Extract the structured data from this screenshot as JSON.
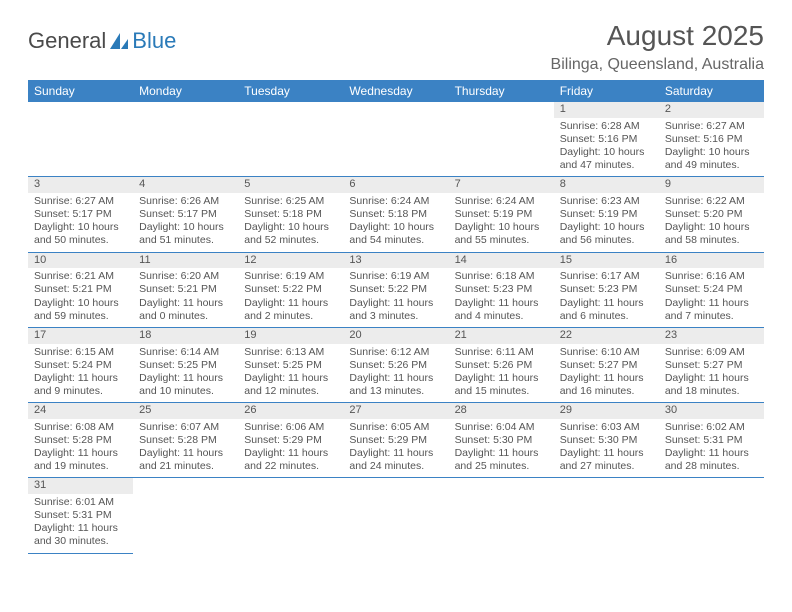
{
  "logo": {
    "part1": "General",
    "part2": "Blue"
  },
  "title": "August 2025",
  "location": "Bilinga, Queensland, Australia",
  "theme": {
    "header_bg": "#3b82c4",
    "header_fg": "#ffffff",
    "daynum_bg": "#ececec",
    "border_color": "#3b82c4",
    "text_color": "#555555",
    "logo_blue": "#2a7ab8"
  },
  "columns": [
    "Sunday",
    "Monday",
    "Tuesday",
    "Wednesday",
    "Thursday",
    "Friday",
    "Saturday"
  ],
  "weeks": [
    [
      null,
      null,
      null,
      null,
      null,
      {
        "n": "1",
        "sunrise": "6:28 AM",
        "sunset": "5:16 PM",
        "daylight": "10 hours and 47 minutes."
      },
      {
        "n": "2",
        "sunrise": "6:27 AM",
        "sunset": "5:16 PM",
        "daylight": "10 hours and 49 minutes."
      }
    ],
    [
      {
        "n": "3",
        "sunrise": "6:27 AM",
        "sunset": "5:17 PM",
        "daylight": "10 hours and 50 minutes."
      },
      {
        "n": "4",
        "sunrise": "6:26 AM",
        "sunset": "5:17 PM",
        "daylight": "10 hours and 51 minutes."
      },
      {
        "n": "5",
        "sunrise": "6:25 AM",
        "sunset": "5:18 PM",
        "daylight": "10 hours and 52 minutes."
      },
      {
        "n": "6",
        "sunrise": "6:24 AM",
        "sunset": "5:18 PM",
        "daylight": "10 hours and 54 minutes."
      },
      {
        "n": "7",
        "sunrise": "6:24 AM",
        "sunset": "5:19 PM",
        "daylight": "10 hours and 55 minutes."
      },
      {
        "n": "8",
        "sunrise": "6:23 AM",
        "sunset": "5:19 PM",
        "daylight": "10 hours and 56 minutes."
      },
      {
        "n": "9",
        "sunrise": "6:22 AM",
        "sunset": "5:20 PM",
        "daylight": "10 hours and 58 minutes."
      }
    ],
    [
      {
        "n": "10",
        "sunrise": "6:21 AM",
        "sunset": "5:21 PM",
        "daylight": "10 hours and 59 minutes."
      },
      {
        "n": "11",
        "sunrise": "6:20 AM",
        "sunset": "5:21 PM",
        "daylight": "11 hours and 0 minutes."
      },
      {
        "n": "12",
        "sunrise": "6:19 AM",
        "sunset": "5:22 PM",
        "daylight": "11 hours and 2 minutes."
      },
      {
        "n": "13",
        "sunrise": "6:19 AM",
        "sunset": "5:22 PM",
        "daylight": "11 hours and 3 minutes."
      },
      {
        "n": "14",
        "sunrise": "6:18 AM",
        "sunset": "5:23 PM",
        "daylight": "11 hours and 4 minutes."
      },
      {
        "n": "15",
        "sunrise": "6:17 AM",
        "sunset": "5:23 PM",
        "daylight": "11 hours and 6 minutes."
      },
      {
        "n": "16",
        "sunrise": "6:16 AM",
        "sunset": "5:24 PM",
        "daylight": "11 hours and 7 minutes."
      }
    ],
    [
      {
        "n": "17",
        "sunrise": "6:15 AM",
        "sunset": "5:24 PM",
        "daylight": "11 hours and 9 minutes."
      },
      {
        "n": "18",
        "sunrise": "6:14 AM",
        "sunset": "5:25 PM",
        "daylight": "11 hours and 10 minutes."
      },
      {
        "n": "19",
        "sunrise": "6:13 AM",
        "sunset": "5:25 PM",
        "daylight": "11 hours and 12 minutes."
      },
      {
        "n": "20",
        "sunrise": "6:12 AM",
        "sunset": "5:26 PM",
        "daylight": "11 hours and 13 minutes."
      },
      {
        "n": "21",
        "sunrise": "6:11 AM",
        "sunset": "5:26 PM",
        "daylight": "11 hours and 15 minutes."
      },
      {
        "n": "22",
        "sunrise": "6:10 AM",
        "sunset": "5:27 PM",
        "daylight": "11 hours and 16 minutes."
      },
      {
        "n": "23",
        "sunrise": "6:09 AM",
        "sunset": "5:27 PM",
        "daylight": "11 hours and 18 minutes."
      }
    ],
    [
      {
        "n": "24",
        "sunrise": "6:08 AM",
        "sunset": "5:28 PM",
        "daylight": "11 hours and 19 minutes."
      },
      {
        "n": "25",
        "sunrise": "6:07 AM",
        "sunset": "5:28 PM",
        "daylight": "11 hours and 21 minutes."
      },
      {
        "n": "26",
        "sunrise": "6:06 AM",
        "sunset": "5:29 PM",
        "daylight": "11 hours and 22 minutes."
      },
      {
        "n": "27",
        "sunrise": "6:05 AM",
        "sunset": "5:29 PM",
        "daylight": "11 hours and 24 minutes."
      },
      {
        "n": "28",
        "sunrise": "6:04 AM",
        "sunset": "5:30 PM",
        "daylight": "11 hours and 25 minutes."
      },
      {
        "n": "29",
        "sunrise": "6:03 AM",
        "sunset": "5:30 PM",
        "daylight": "11 hours and 27 minutes."
      },
      {
        "n": "30",
        "sunrise": "6:02 AM",
        "sunset": "5:31 PM",
        "daylight": "11 hours and 28 minutes."
      }
    ],
    [
      {
        "n": "31",
        "sunrise": "6:01 AM",
        "sunset": "5:31 PM",
        "daylight": "11 hours and 30 minutes."
      },
      null,
      null,
      null,
      null,
      null,
      null
    ]
  ],
  "labels": {
    "sunrise": "Sunrise:",
    "sunset": "Sunset:",
    "daylight": "Daylight:"
  }
}
